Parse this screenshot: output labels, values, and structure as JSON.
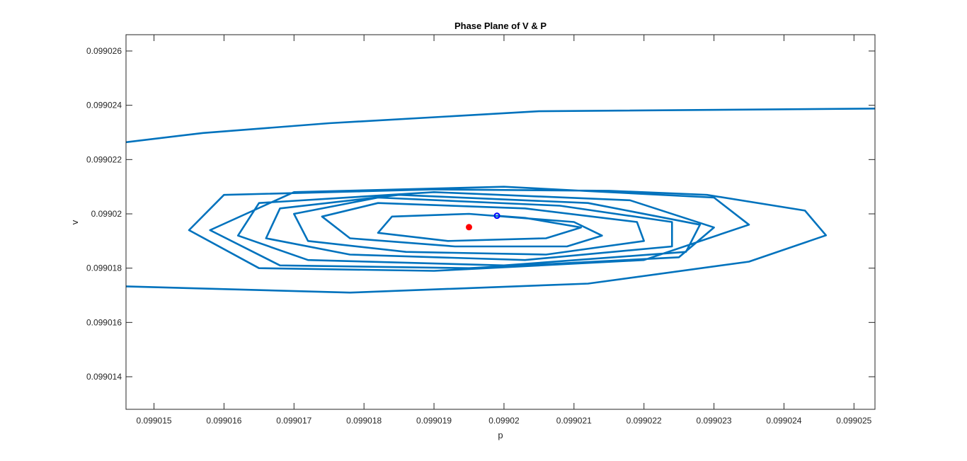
{
  "chart_data": {
    "type": "line",
    "title": "Phase Plane of V & P",
    "xlabel": "p",
    "ylabel": "v",
    "xlim": [
      0.0990146,
      0.0990253
    ],
    "ylim": [
      0.0990128,
      0.0990266
    ],
    "x_ticks": [
      "0.099015",
      "0.099016",
      "0.099017",
      "0.099018",
      "0.099019",
      "0.09902",
      "0.099021",
      "0.099022",
      "0.099023",
      "0.099024",
      "0.099025"
    ],
    "x_tick_values": [
      0.099015,
      0.099016,
      0.099017,
      0.099018,
      0.099019,
      0.09902,
      0.099021,
      0.099022,
      0.099023,
      0.099024,
      0.099025
    ],
    "y_ticks": [
      "0.099014",
      "0.099016",
      "0.099018",
      "0.09902",
      "0.099022",
      "0.099024",
      "0.099026"
    ],
    "y_tick_values": [
      0.099014,
      0.099016,
      0.099018,
      0.09902,
      0.099022,
      0.099024,
      0.099026
    ],
    "grid": false,
    "colors": {
      "trajectory": "#0072BD",
      "equilibrium": "#FF0000",
      "start": "#0000FF"
    },
    "series": [
      {
        "role": "outer-upper-branch",
        "points": [
          [
            0.0990146,
            0.09902264
          ],
          [
            0.0990157,
            0.09902298
          ],
          [
            0.0990175,
            0.09902334
          ],
          [
            0.0990205,
            0.09902378
          ],
          [
            0.0990253,
            0.09902388
          ]
        ]
      },
      {
        "role": "outer-lower-branch",
        "points": [
          [
            0.0990146,
            0.09901733
          ],
          [
            0.0990178,
            0.0990171
          ],
          [
            0.0990212,
            0.09901743
          ],
          [
            0.0990235,
            0.09901824
          ],
          [
            0.0990246,
            0.09901921
          ],
          [
            0.0990243,
            0.09902012
          ],
          [
            0.0990229,
            0.0990207
          ],
          [
            0.0990215,
            0.09902085
          ],
          [
            0.099019,
            0.0990209
          ],
          [
            0.099016,
            0.0990207
          ],
          [
            0.0990155,
            0.0990194
          ],
          [
            0.0990165,
            0.099018
          ],
          [
            0.099019,
            0.0990179
          ],
          [
            0.099022,
            0.0990183
          ],
          [
            0.0990235,
            0.0990196
          ],
          [
            0.099023,
            0.0990206
          ],
          [
            0.09902,
            0.099021
          ],
          [
            0.099017,
            0.0990208
          ],
          [
            0.0990158,
            0.0990194
          ],
          [
            0.0990168,
            0.0990181
          ],
          [
            0.0990195,
            0.099018
          ],
          [
            0.0990225,
            0.0990184
          ],
          [
            0.099023,
            0.0990195
          ],
          [
            0.0990218,
            0.0990205
          ],
          [
            0.099019,
            0.0990208
          ],
          [
            0.0990165,
            0.0990204
          ],
          [
            0.0990162,
            0.0990192
          ],
          [
            0.0990172,
            0.0990183
          ],
          [
            0.09902,
            0.0990181
          ],
          [
            0.0990226,
            0.0990186
          ],
          [
            0.0990228,
            0.0990196
          ],
          [
            0.0990212,
            0.0990204
          ],
          [
            0.0990185,
            0.0990207
          ],
          [
            0.0990168,
            0.0990202
          ],
          [
            0.0990166,
            0.0990191
          ],
          [
            0.0990178,
            0.0990185
          ],
          [
            0.0990203,
            0.0990183
          ],
          [
            0.0990224,
            0.0990188
          ],
          [
            0.0990224,
            0.0990197
          ],
          [
            0.0990208,
            0.0990203
          ],
          [
            0.0990182,
            0.0990206
          ],
          [
            0.099017,
            0.09902
          ],
          [
            0.0990172,
            0.099019
          ],
          [
            0.0990186,
            0.0990186
          ],
          [
            0.0990206,
            0.0990185
          ],
          [
            0.099022,
            0.099019
          ],
          [
            0.0990219,
            0.0990197
          ],
          [
            0.0990203,
            0.0990202
          ],
          [
            0.0990182,
            0.0990204
          ],
          [
            0.0990174,
            0.0990199
          ],
          [
            0.0990178,
            0.0990191
          ],
          [
            0.0990193,
            0.0990188
          ],
          [
            0.0990209,
            0.0990188
          ],
          [
            0.0990214,
            0.0990192
          ],
          [
            0.099021,
            0.0990197
          ],
          [
            0.0990195,
            0.09902
          ],
          [
            0.0990184,
            0.0990199
          ],
          [
            0.0990182,
            0.0990193
          ],
          [
            0.0990192,
            0.099019
          ],
          [
            0.0990206,
            0.0990191
          ],
          [
            0.0990211,
            0.0990195
          ],
          [
            0.0990203,
            0.09901985
          ],
          [
            0.0990199,
            0.09901993
          ]
        ]
      }
    ],
    "markers": [
      {
        "name": "equilibrium",
        "x": 0.0990195,
        "y": 0.09901951,
        "style": "filled-dot"
      },
      {
        "name": "start",
        "x": 0.0990199,
        "y": 0.09901993,
        "style": "open-circle"
      }
    ]
  }
}
